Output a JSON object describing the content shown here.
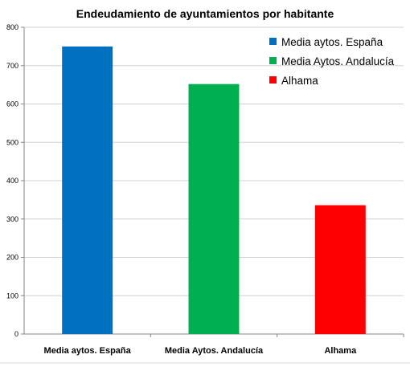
{
  "chart_data": {
    "type": "bar",
    "title": "Endeudamiento de ayuntamientos por habitante",
    "xlabel": "",
    "ylabel": "",
    "categories": [
      "Media aytos. España",
      "Media Aytos. Andalucía",
      "Alhama"
    ],
    "values": [
      750,
      652,
      336
    ],
    "colors": [
      "#0070C0",
      "#00B050",
      "#FF0000"
    ],
    "ylim": [
      0,
      800
    ],
    "yticks": [
      0,
      100,
      200,
      300,
      400,
      500,
      600,
      700,
      800
    ],
    "grid": true,
    "legend": {
      "position": "top-right",
      "entries": [
        "Media aytos. España",
        "Media Aytos. Andalucía",
        "Alhama"
      ]
    }
  }
}
